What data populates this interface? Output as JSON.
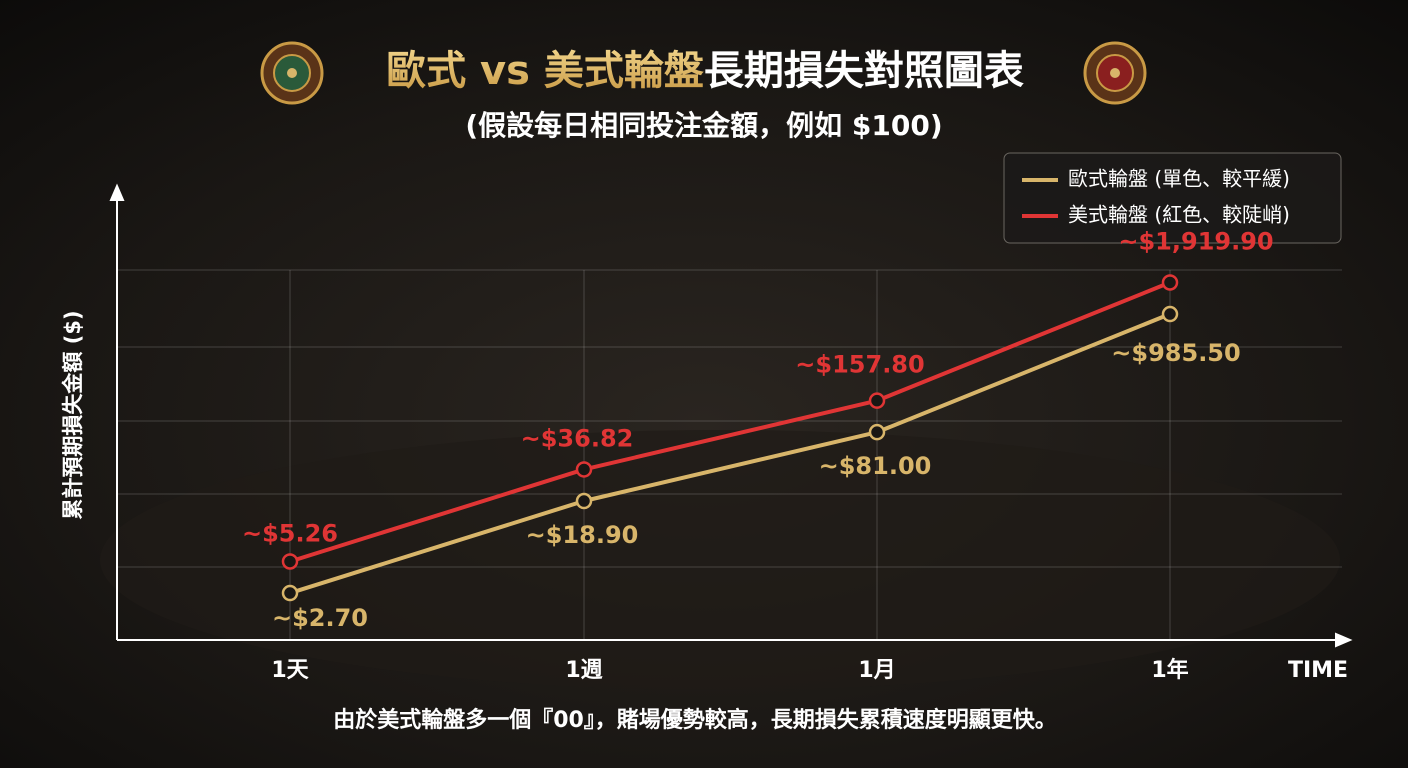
{
  "chart_data": {
    "type": "line",
    "title": [
      "歐式 vs 美式輪盤",
      "長期損失對照圖表"
    ],
    "subtitle": "(假設每日相同投注金額，例如 $100)",
    "y_label": "累計預期損失金額 ($)",
    "x_label": "TIME",
    "footnote": "由於美式輪盤多一個『00』，賭場優勢較高，長期損失累積速度明顯更快。",
    "categories": [
      "1天",
      "1週",
      "1月",
      "1年"
    ],
    "log_scale": true,
    "ylim": [
      1,
      2500
    ],
    "legend_position": "upper right",
    "series": [
      {
        "name": "歐式輪盤 (單色、較平緩)",
        "color": "#d8b56a",
        "values": [
          2.7,
          18.9,
          81.0,
          985.5
        ],
        "value_labels": [
          "~$2.70",
          "~$18.90",
          "~$81.00",
          "~$985.50"
        ]
      },
      {
        "name": "美式輪盤 (紅色、較陡峭)",
        "color": "#e03535",
        "values": [
          5.26,
          36.82,
          157.8,
          1919.9
        ],
        "value_labels": [
          "~$5.26",
          "~$36.82",
          "~$157.80",
          "~$1,919.90"
        ]
      }
    ]
  }
}
